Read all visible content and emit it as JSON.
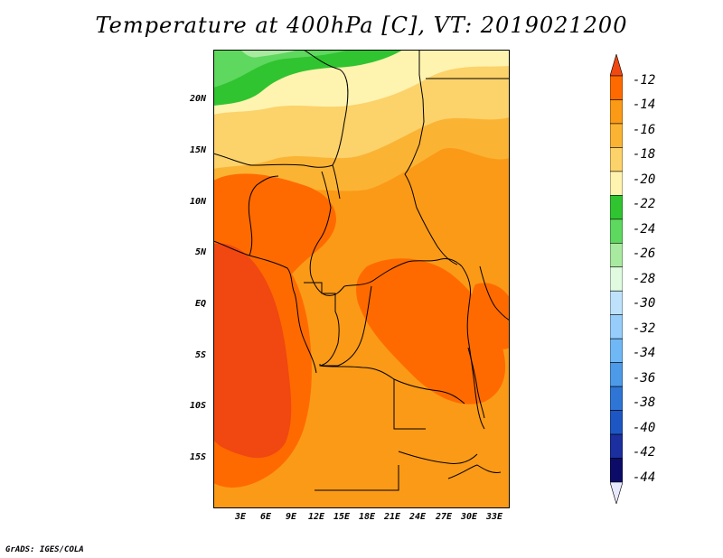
{
  "title": "Temperature at 400hPa [C], VT: 2019021200",
  "credit": "GrADS: IGES/COLA",
  "map": {
    "variable": "Temperature",
    "level": "400hPa",
    "units": "C",
    "valid_time": "2019021200",
    "lat_labels": [
      "20N",
      "15N",
      "10N",
      "5N",
      "EQ",
      "5S",
      "10S",
      "15S"
    ],
    "lon_labels": [
      "3E",
      "6E",
      "9E",
      "12E",
      "15E",
      "18E",
      "21E",
      "24E",
      "27E",
      "30E",
      "33E"
    ]
  },
  "colorbar": {
    "labels": [
      "-12",
      "-14",
      "-16",
      "-18",
      "-20",
      "-22",
      "-24",
      "-26",
      "-28",
      "-30",
      "-32",
      "-34",
      "-36",
      "-38",
      "-40",
      "-42",
      "-44"
    ],
    "colors": [
      "#f04810",
      "#ff6a00",
      "#fb9a16",
      "#fbb334",
      "#fcd26a",
      "#fff3b0",
      "#30c430",
      "#5ed85e",
      "#a8eaa0",
      "#e0fbe0",
      "#bfe2fc",
      "#96cdfb",
      "#6fb8f5",
      "#4d9ae8",
      "#2e75d6",
      "#1e56c4",
      "#1b2f9e",
      "#0c0c68",
      "#e8e8ff"
    ]
  }
}
